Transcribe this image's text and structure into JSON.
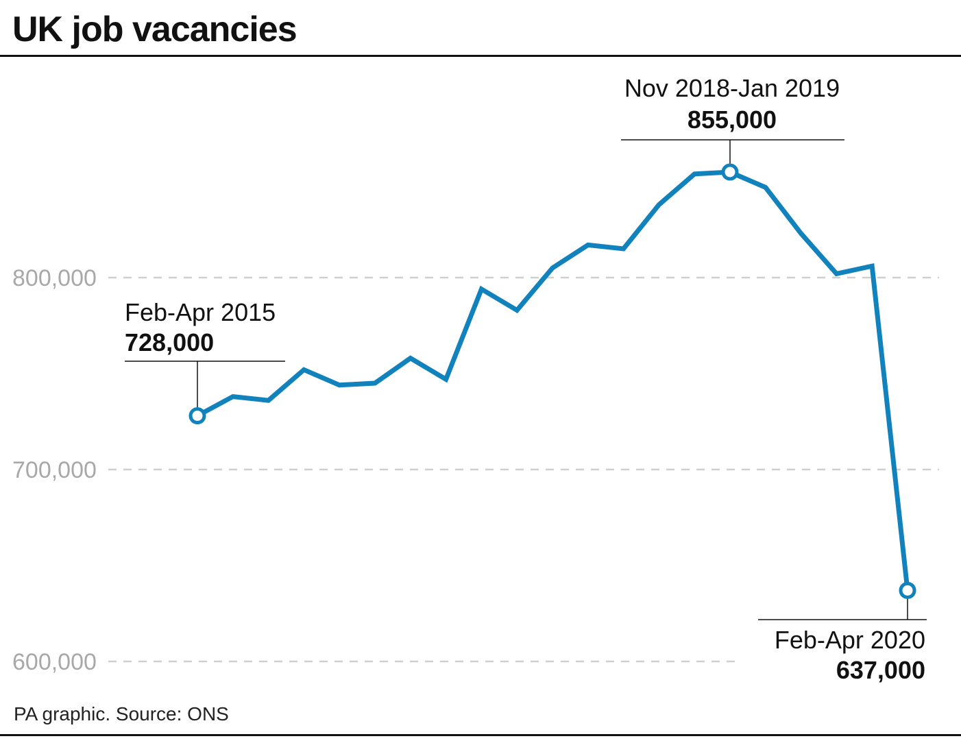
{
  "title": "UK job vacancies",
  "source": "PA graphic. Source: ONS",
  "colors": {
    "line": "#1282bd",
    "grid": "#cfcfcf",
    "tick": "#a8a8a8",
    "text": "#111111"
  },
  "chart_data": {
    "type": "line",
    "title": "UK job vacancies",
    "xlabel": "",
    "ylabel": "",
    "ylim": [
      600000,
      855000
    ],
    "yticks": [
      {
        "value": 600000,
        "label": "600,000"
      },
      {
        "value": 700000,
        "label": "700,000"
      },
      {
        "value": 800000,
        "label": "800,000"
      }
    ],
    "grid": "horizontal dashed",
    "legend": "none",
    "series": [
      {
        "values": [
          728000,
          738000,
          736000,
          752000,
          744000,
          745000,
          758000,
          747000,
          794000,
          783000,
          805000,
          817000,
          815000,
          838000,
          854000,
          855000,
          847000,
          823000,
          802000,
          806000,
          637000
        ]
      }
    ],
    "annotations": [
      {
        "index": 0,
        "label": "Feb-Apr 2015",
        "value": "728,000"
      },
      {
        "index": 15,
        "label": "Nov 2018-Jan 2019",
        "value": "855,000"
      },
      {
        "index": 20,
        "label": "Feb-Apr 2020",
        "value": "637,000"
      }
    ]
  }
}
